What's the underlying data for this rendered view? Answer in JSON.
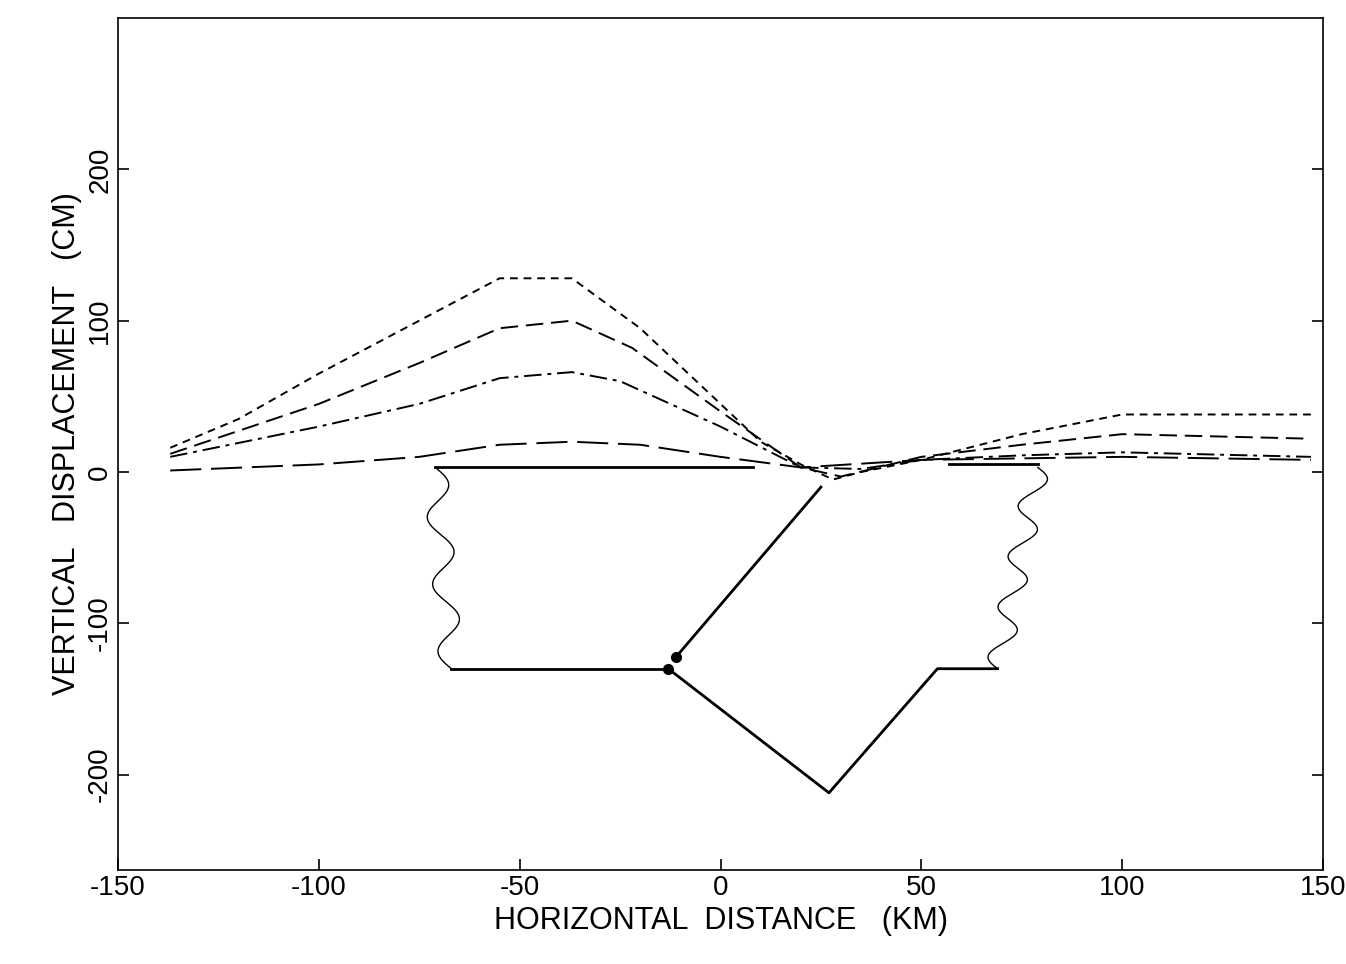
{
  "chart_data": {
    "type": "line",
    "x_label": "HORIZONTAL  DISTANCE   (KM)",
    "y_label": "VERTICAL   DISPLACEMENT   (CM)",
    "xlim": [
      -150,
      150
    ],
    "xticks": [
      -150,
      -100,
      -50,
      0,
      50,
      100,
      150
    ],
    "ylim": [
      -263,
      300
    ],
    "yticks": [
      -200,
      -100,
      0,
      100,
      200
    ],
    "grid": false,
    "series": [
      {
        "color": "#000000",
        "line_style": "short_dash",
        "x": [
          -137,
          -120,
          -100,
          -75,
          -55,
          -37,
          -20,
          0,
          10,
          20,
          28,
          35,
          50,
          75,
          100,
          147
        ],
        "values": [
          16,
          35,
          65,
          100,
          128,
          128,
          95,
          45,
          20,
          5,
          -5,
          0,
          8,
          25,
          38,
          38
        ]
      },
      {
        "color": "#000000",
        "line_style": "dashed",
        "x": [
          -137,
          -100,
          -75,
          -55,
          -37,
          -22,
          0,
          20,
          30,
          50,
          75,
          100,
          147
        ],
        "values": [
          12,
          45,
          72,
          95,
          100,
          82,
          40,
          3,
          -3,
          10,
          18,
          25,
          22
        ]
      },
      {
        "color": "#000000",
        "line_style": "dashdot",
        "x": [
          -137,
          -100,
          -75,
          -55,
          -37,
          -25,
          0,
          20,
          35,
          50,
          75,
          100,
          147
        ],
        "values": [
          10,
          30,
          45,
          62,
          66,
          60,
          30,
          3,
          2,
          8,
          11,
          13,
          10
        ]
      },
      {
        "color": "#000000",
        "line_style": "long_dash",
        "x": [
          -137,
          -100,
          -75,
          -55,
          -37,
          -20,
          0,
          20,
          50,
          75,
          100,
          147
        ],
        "values": [
          1,
          5,
          10,
          18,
          20,
          18,
          10,
          3,
          8,
          9,
          10,
          8
        ]
      }
    ]
  }
}
